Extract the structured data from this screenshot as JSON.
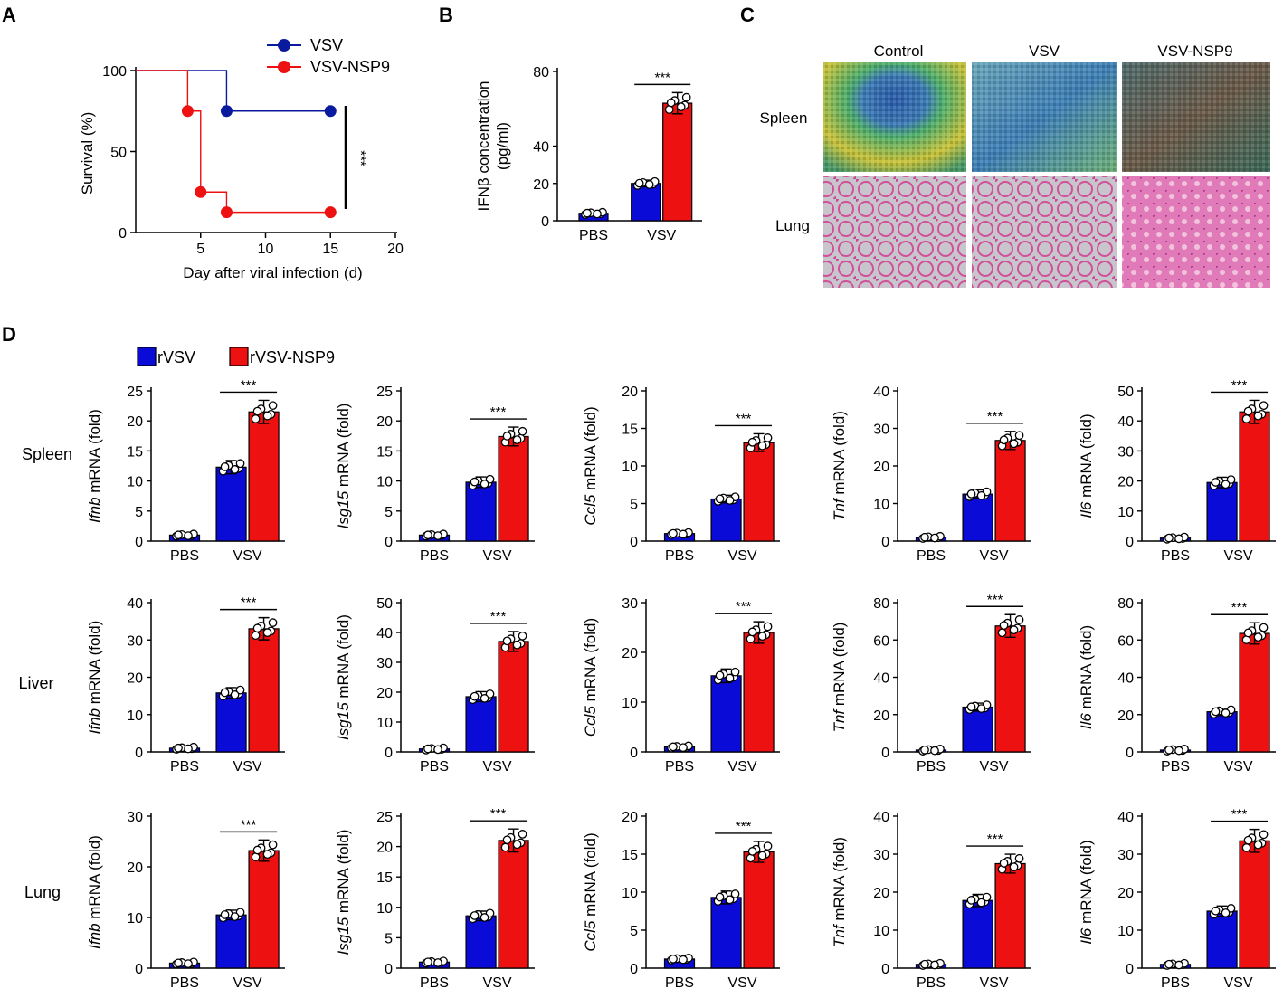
{
  "figure_labels": {
    "a": "A",
    "b": "B",
    "c": "C",
    "d": "D"
  },
  "colors": {
    "blue": "#0b0bd8",
    "red": "#ee1111",
    "navy": "#0a1a9e"
  },
  "panel_c": {
    "columns": [
      "Control",
      "VSV",
      "VSV-NSP9"
    ],
    "rows": [
      "Spleen",
      "Lung"
    ]
  },
  "panel_d": {
    "legend": [
      "rVSV",
      "rVSV-NSP9"
    ],
    "rows": [
      "Spleen",
      "Liver",
      "Lung"
    ]
  },
  "chart_data": [
    {
      "id": "A",
      "type": "line",
      "title": "",
      "xlabel": "Day after viral infection (d)",
      "ylabel": "Survival (%)",
      "xlim": [
        0,
        20
      ],
      "ylim": [
        0,
        100
      ],
      "xticks": [
        5,
        10,
        15,
        20
      ],
      "yticks": [
        0,
        50,
        100
      ],
      "legend": [
        "VSV",
        "VSV-NSP9"
      ],
      "significance": "***",
      "series": [
        {
          "name": "VSV",
          "x": [
            0,
            7,
            15
          ],
          "y": [
            100,
            75,
            75
          ]
        },
        {
          "name": "VSV-NSP9",
          "x": [
            0,
            4,
            5,
            7,
            15
          ],
          "y": [
            100,
            75,
            25,
            12.5,
            12.5
          ]
        }
      ]
    },
    {
      "id": "B",
      "type": "bar",
      "row": "",
      "ylabel_gene": "",
      "ylabel": "IFNβ concentration (pg/ml)",
      "ymax": 80,
      "yticks_shown": [
        0,
        20,
        40,
        80
      ],
      "categories": [
        "PBS",
        "VSV"
      ],
      "series": [
        {
          "name": "rVSV",
          "values": [
            4,
            20
          ]
        },
        {
          "name": "rVSV-NSP9",
          "values": [
            null,
            63
          ]
        }
      ],
      "significance": "***"
    },
    {
      "id": "D-Spleen-Ifnb",
      "type": "bar",
      "row": "Spleen",
      "ylabel_gene": "Ifnb",
      "ylabel": " mRNA (fold)",
      "ymax": 25,
      "yticks": [
        0,
        5,
        10,
        15,
        20,
        25
      ],
      "categories": [
        "PBS",
        "VSV"
      ],
      "series": [
        {
          "name": "rVSV",
          "values": [
            1,
            12.3
          ]
        },
        {
          "name": "rVSV-NSP9",
          "values": [
            null,
            21.5
          ]
        }
      ],
      "significance": "***"
    },
    {
      "id": "D-Spleen-Isg15",
      "type": "bar",
      "row": "Spleen",
      "ylabel_gene": "Isg15",
      "ylabel": " mRNA (fold)",
      "ymax": 25,
      "yticks": [
        0,
        5,
        10,
        15,
        20,
        25
      ],
      "categories": [
        "PBS",
        "VSV"
      ],
      "series": [
        {
          "name": "rVSV",
          "values": [
            1,
            9.8
          ]
        },
        {
          "name": "rVSV-NSP9",
          "values": [
            null,
            17.4
          ]
        }
      ],
      "significance": "***"
    },
    {
      "id": "D-Spleen-Ccl5",
      "type": "bar",
      "row": "Spleen",
      "ylabel_gene": "Ccl5",
      "ylabel": " mRNA (fold)",
      "ymax": 20,
      "yticks": [
        0,
        5,
        10,
        15,
        20
      ],
      "categories": [
        "PBS",
        "VSV"
      ],
      "series": [
        {
          "name": "rVSV",
          "values": [
            1,
            5.6
          ]
        },
        {
          "name": "rVSV-NSP9",
          "values": [
            null,
            13.1
          ]
        }
      ],
      "significance": "***"
    },
    {
      "id": "D-Spleen-Tnf",
      "type": "bar",
      "row": "Spleen",
      "ylabel_gene": "Tnf",
      "ylabel": " mRNA (fold)",
      "ymax": 40,
      "yticks": [
        0,
        10,
        20,
        30,
        40
      ],
      "categories": [
        "PBS",
        "VSV"
      ],
      "series": [
        {
          "name": "rVSV",
          "values": [
            1,
            12.5
          ]
        },
        {
          "name": "rVSV-NSP9",
          "values": [
            null,
            26.8
          ]
        }
      ],
      "significance": "***"
    },
    {
      "id": "D-Spleen-Il6",
      "type": "bar",
      "row": "Spleen",
      "ylabel_gene": "Il6",
      "ylabel": " mRNA (fold)",
      "ymax": 50,
      "yticks": [
        0,
        10,
        20,
        30,
        40,
        50
      ],
      "categories": [
        "PBS",
        "VSV"
      ],
      "series": [
        {
          "name": "rVSV",
          "values": [
            1,
            19.5
          ]
        },
        {
          "name": "rVSV-NSP9",
          "values": [
            null,
            43
          ]
        }
      ],
      "significance": "***"
    },
    {
      "id": "D-Liver-Ifnb",
      "type": "bar",
      "row": "Liver",
      "ylabel_gene": "Ifnb",
      "ylabel": " mRNA (fold)",
      "ymax": 40,
      "yticks": [
        0,
        10,
        20,
        30,
        40
      ],
      "categories": [
        "PBS",
        "VSV"
      ],
      "series": [
        {
          "name": "rVSV",
          "values": [
            1,
            15.8
          ]
        },
        {
          "name": "rVSV-NSP9",
          "values": [
            null,
            33
          ]
        }
      ],
      "significance": "***"
    },
    {
      "id": "D-Liver-Isg15",
      "type": "bar",
      "row": "Liver",
      "ylabel_gene": "Isg15",
      "ylabel": " mRNA (fold)",
      "ymax": 50,
      "yticks": [
        0,
        10,
        20,
        30,
        40,
        50
      ],
      "categories": [
        "PBS",
        "VSV"
      ],
      "series": [
        {
          "name": "rVSV",
          "values": [
            1,
            18.5
          ]
        },
        {
          "name": "rVSV-NSP9",
          "values": [
            null,
            37
          ]
        }
      ],
      "significance": "***"
    },
    {
      "id": "D-Liver-Ccl5",
      "type": "bar",
      "row": "Liver",
      "ylabel_gene": "Ccl5",
      "ylabel": " mRNA (fold)",
      "ymax": 30,
      "yticks": [
        0,
        10,
        20,
        30
      ],
      "categories": [
        "PBS",
        "VSV"
      ],
      "series": [
        {
          "name": "rVSV",
          "values": [
            1,
            15.3
          ]
        },
        {
          "name": "rVSV-NSP9",
          "values": [
            null,
            24
          ]
        }
      ],
      "significance": "***"
    },
    {
      "id": "D-Liver-Tnf",
      "type": "bar",
      "row": "Liver",
      "ylabel_gene": "Tnf",
      "ylabel": " mRNA (fold)",
      "ymax": 80,
      "yticks": [
        0,
        20,
        40,
        60,
        80
      ],
      "categories": [
        "PBS",
        "VSV"
      ],
      "series": [
        {
          "name": "rVSV",
          "values": [
            1,
            24
          ]
        },
        {
          "name": "rVSV-NSP9",
          "values": [
            null,
            67.5
          ]
        }
      ],
      "significance": "***"
    },
    {
      "id": "D-Liver-Il6",
      "type": "bar",
      "row": "Liver",
      "ylabel_gene": "Il6",
      "ylabel": " mRNA (fold)",
      "ymax": 80,
      "yticks": [
        0,
        20,
        40,
        60,
        80
      ],
      "categories": [
        "PBS",
        "VSV"
      ],
      "series": [
        {
          "name": "rVSV",
          "values": [
            1,
            21.5
          ]
        },
        {
          "name": "rVSV-NSP9",
          "values": [
            null,
            63.5
          ]
        }
      ],
      "significance": "***"
    },
    {
      "id": "D-Lung-Ifnb",
      "type": "bar",
      "row": "Lung",
      "ylabel_gene": "Ifnb",
      "ylabel": " mRNA (fold)",
      "ymax": 30,
      "yticks": [
        0,
        10,
        20,
        30
      ],
      "categories": [
        "PBS",
        "VSV"
      ],
      "series": [
        {
          "name": "rVSV",
          "values": [
            1,
            10.5
          ]
        },
        {
          "name": "rVSV-NSP9",
          "values": [
            null,
            23.2
          ]
        }
      ],
      "significance": "***"
    },
    {
      "id": "D-Lung-Isg15",
      "type": "bar",
      "row": "Lung",
      "ylabel_gene": "Isg15",
      "ylabel": " mRNA (fold)",
      "ymax": 25,
      "yticks": [
        0,
        5,
        10,
        15,
        20,
        25
      ],
      "categories": [
        "PBS",
        "VSV"
      ],
      "series": [
        {
          "name": "rVSV",
          "values": [
            1,
            8.6
          ]
        },
        {
          "name": "rVSV-NSP9",
          "values": [
            null,
            21
          ]
        }
      ],
      "significance": "***"
    },
    {
      "id": "D-Lung-Ccl5",
      "type": "bar",
      "row": "Lung",
      "ylabel_gene": "Ccl5",
      "ylabel": " mRNA (fold)",
      "ymax": 20,
      "yticks": [
        0,
        5,
        10,
        15,
        20
      ],
      "categories": [
        "PBS",
        "VSV"
      ],
      "series": [
        {
          "name": "rVSV",
          "values": [
            1.2,
            9.3
          ]
        },
        {
          "name": "rVSV-NSP9",
          "values": [
            null,
            15.3
          ]
        }
      ],
      "significance": "***"
    },
    {
      "id": "D-Lung-Tnf",
      "type": "bar",
      "row": "Lung",
      "ylabel_gene": "Tnf",
      "ylabel": " mRNA (fold)",
      "ymax": 40,
      "yticks": [
        0,
        10,
        20,
        30,
        40
      ],
      "categories": [
        "PBS",
        "VSV"
      ],
      "series": [
        {
          "name": "rVSV",
          "values": [
            1,
            17.8
          ]
        },
        {
          "name": "rVSV-NSP9",
          "values": [
            null,
            27.5
          ]
        }
      ],
      "significance": "***"
    },
    {
      "id": "D-Lung-Il6",
      "type": "bar",
      "row": "Lung",
      "ylabel_gene": "Il6",
      "ylabel": " mRNA (fold)",
      "ymax": 40,
      "yticks": [
        0,
        10,
        20,
        30,
        40
      ],
      "categories": [
        "PBS",
        "VSV"
      ],
      "series": [
        {
          "name": "rVSV",
          "values": [
            1,
            15
          ]
        },
        {
          "name": "rVSV-NSP9",
          "values": [
            null,
            33.5
          ]
        }
      ],
      "significance": "***"
    }
  ]
}
